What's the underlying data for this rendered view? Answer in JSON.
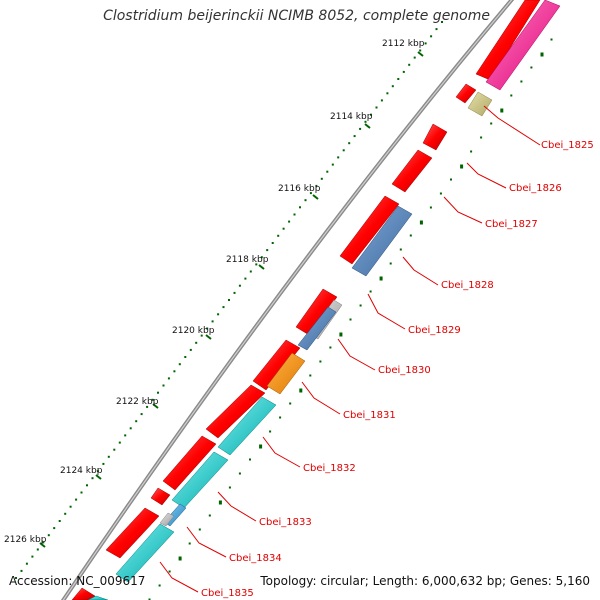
{
  "title": "Clostridium beijerinckii NCIMB 8052, complete genome",
  "accession": "Accession: NC_009617",
  "summary": "Topology: circular; Length: 6,000,632 bp; Genes: 5,160",
  "colors": {
    "cds": "#ff0000",
    "label": "#e00000",
    "tick": "#006400",
    "backbone": "#808080",
    "magenta": "#ff1493",
    "khaki": "#c8c080",
    "steelblue": "#4f7fb5",
    "silver": "#b8b8b8",
    "orange": "#ff8c00",
    "cyan": "#00c8c8"
  },
  "scale_ticks": [
    {
      "label": "2112 kbp"
    },
    {
      "label": "2114 kbp"
    },
    {
      "label": "2116 kbp"
    },
    {
      "label": "2118 kbp"
    },
    {
      "label": "2120 kbp"
    },
    {
      "label": "2122 kbp"
    },
    {
      "label": "2124 kbp"
    },
    {
      "label": "2126 kbp"
    }
  ],
  "gene_labels": [
    {
      "name": "Cbei_1825"
    },
    {
      "name": "Cbei_1826"
    },
    {
      "name": "Cbei_1827"
    },
    {
      "name": "Cbei_1828"
    },
    {
      "name": "Cbei_1829"
    },
    {
      "name": "Cbei_1830"
    },
    {
      "name": "Cbei_1831"
    },
    {
      "name": "Cbei_1832"
    },
    {
      "name": "Cbei_1833"
    },
    {
      "name": "Cbei_1834"
    },
    {
      "name": "Cbei_1835"
    }
  ]
}
